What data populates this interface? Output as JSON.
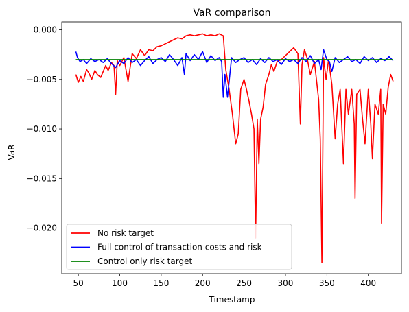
{
  "chart_data": {
    "type": "line",
    "title": "VaR comparison",
    "xlabel": "Timestamp",
    "ylabel": "VaR",
    "xlim": [
      30,
      440
    ],
    "ylim": [
      -0.0246,
      0.0008
    ],
    "xticks": [
      50,
      100,
      150,
      200,
      250,
      300,
      350,
      400
    ],
    "yticks": [
      0.0,
      -0.005,
      -0.01,
      -0.015,
      -0.02
    ],
    "ytick_labels": [
      "0.000",
      "−0.005",
      "−0.010",
      "−0.015",
      "−0.020"
    ],
    "grid": false,
    "legend_position": "lower-left",
    "series": [
      {
        "name": "No risk target",
        "color": "#ff0000",
        "x": [
          47,
          50,
          53,
          56,
          60,
          63,
          66,
          70,
          73,
          77,
          80,
          83,
          86,
          90,
          93,
          95,
          97,
          100,
          105,
          110,
          115,
          120,
          125,
          130,
          135,
          140,
          145,
          150,
          155,
          160,
          165,
          170,
          175,
          180,
          185,
          190,
          195,
          200,
          205,
          210,
          215,
          220,
          225,
          228,
          232,
          236,
          240,
          243,
          246,
          250,
          253,
          256,
          259,
          262,
          264,
          266,
          268,
          270,
          273,
          276,
          280,
          283,
          286,
          290,
          295,
          300,
          305,
          310,
          315,
          318,
          320,
          323,
          326,
          330,
          335,
          340,
          342,
          344,
          346,
          349,
          352,
          356,
          360,
          363,
          366,
          370,
          373,
          376,
          380,
          383,
          384,
          386,
          390,
          393,
          396,
          400,
          403,
          405,
          408,
          412,
          415,
          416,
          418,
          421,
          424,
          427,
          430
        ],
        "values": [
          -0.0045,
          -0.0053,
          -0.0047,
          -0.0052,
          -0.004,
          -0.0044,
          -0.005,
          -0.0041,
          -0.0045,
          -0.0048,
          -0.0042,
          -0.0036,
          -0.0041,
          -0.0033,
          -0.0036,
          -0.0065,
          -0.0031,
          -0.0036,
          -0.0028,
          -0.0052,
          -0.0024,
          -0.0029,
          -0.002,
          -0.0026,
          -0.002,
          -0.0021,
          -0.0017,
          -0.0016,
          -0.0014,
          -0.0012,
          -0.001,
          -0.0008,
          -0.0009,
          -0.0006,
          -0.0005,
          -0.0006,
          -0.0005,
          -0.0004,
          -0.0006,
          -0.0005,
          -0.0006,
          -0.0004,
          -0.0006,
          -0.004,
          -0.006,
          -0.0085,
          -0.0115,
          -0.0105,
          -0.006,
          -0.005,
          -0.006,
          -0.0072,
          -0.0085,
          -0.01,
          -0.021,
          -0.009,
          -0.0135,
          -0.009,
          -0.0078,
          -0.0055,
          -0.0045,
          -0.0035,
          -0.0042,
          -0.0032,
          -0.003,
          -0.0026,
          -0.0022,
          -0.0018,
          -0.0024,
          -0.0095,
          -0.0035,
          -0.002,
          -0.0028,
          -0.0045,
          -0.0032,
          -0.007,
          -0.011,
          -0.0235,
          -0.0028,
          -0.005,
          -0.003,
          -0.0055,
          -0.011,
          -0.0075,
          -0.006,
          -0.0135,
          -0.006,
          -0.0085,
          -0.006,
          -0.0095,
          -0.017,
          -0.0065,
          -0.006,
          -0.009,
          -0.0115,
          -0.006,
          -0.0095,
          -0.013,
          -0.0075,
          -0.0085,
          -0.006,
          -0.0195,
          -0.0075,
          -0.0085,
          -0.0058,
          -0.0045,
          -0.0052
        ]
      },
      {
        "name": "Full control of transaction costs and risk",
        "color": "#0000ff",
        "x": [
          47,
          49,
          52,
          56,
          60,
          65,
          70,
          75,
          80,
          85,
          90,
          95,
          100,
          105,
          110,
          115,
          120,
          125,
          130,
          135,
          140,
          145,
          150,
          155,
          160,
          165,
          170,
          175,
          178,
          180,
          185,
          190,
          195,
          200,
          205,
          210,
          215,
          220,
          223,
          225,
          227,
          230,
          235,
          240,
          245,
          250,
          255,
          260,
          265,
          270,
          275,
          280,
          285,
          290,
          295,
          300,
          305,
          310,
          315,
          320,
          325,
          330,
          335,
          340,
          343,
          346,
          350,
          353,
          356,
          360,
          365,
          370,
          375,
          380,
          385,
          390,
          395,
          400,
          405,
          410,
          415,
          420,
          425,
          430
        ],
        "values": [
          -0.0022,
          -0.0028,
          -0.0032,
          -0.003,
          -0.0034,
          -0.0029,
          -0.0032,
          -0.003,
          -0.0033,
          -0.0029,
          -0.0034,
          -0.0038,
          -0.0031,
          -0.0034,
          -0.0028,
          -0.0033,
          -0.003,
          -0.0036,
          -0.0031,
          -0.0027,
          -0.0034,
          -0.003,
          -0.0028,
          -0.0032,
          -0.0025,
          -0.003,
          -0.0036,
          -0.0028,
          -0.0045,
          -0.0024,
          -0.0031,
          -0.0025,
          -0.003,
          -0.0022,
          -0.0033,
          -0.0026,
          -0.0031,
          -0.0028,
          -0.0032,
          -0.0068,
          -0.0045,
          -0.0068,
          -0.0028,
          -0.0033,
          -0.003,
          -0.0028,
          -0.0033,
          -0.003,
          -0.0035,
          -0.0029,
          -0.0033,
          -0.0028,
          -0.0032,
          -0.003,
          -0.0035,
          -0.0029,
          -0.0032,
          -0.003,
          -0.0034,
          -0.0028,
          -0.0032,
          -0.0026,
          -0.0034,
          -0.003,
          -0.004,
          -0.002,
          -0.003,
          -0.0032,
          -0.0042,
          -0.0028,
          -0.0033,
          -0.003,
          -0.0027,
          -0.0032,
          -0.003,
          -0.0034,
          -0.0027,
          -0.0031,
          -0.0028,
          -0.0033,
          -0.0029,
          -0.0031,
          -0.0027,
          -0.0031
        ]
      },
      {
        "name": "Control only risk target",
        "color": "#008000",
        "x": [
          47,
          100,
          150,
          200,
          250,
          300,
          350,
          400,
          430
        ],
        "values": [
          -0.003,
          -0.003,
          -0.003,
          -0.003,
          -0.003,
          -0.003,
          -0.003,
          -0.003,
          -0.003
        ]
      }
    ]
  }
}
